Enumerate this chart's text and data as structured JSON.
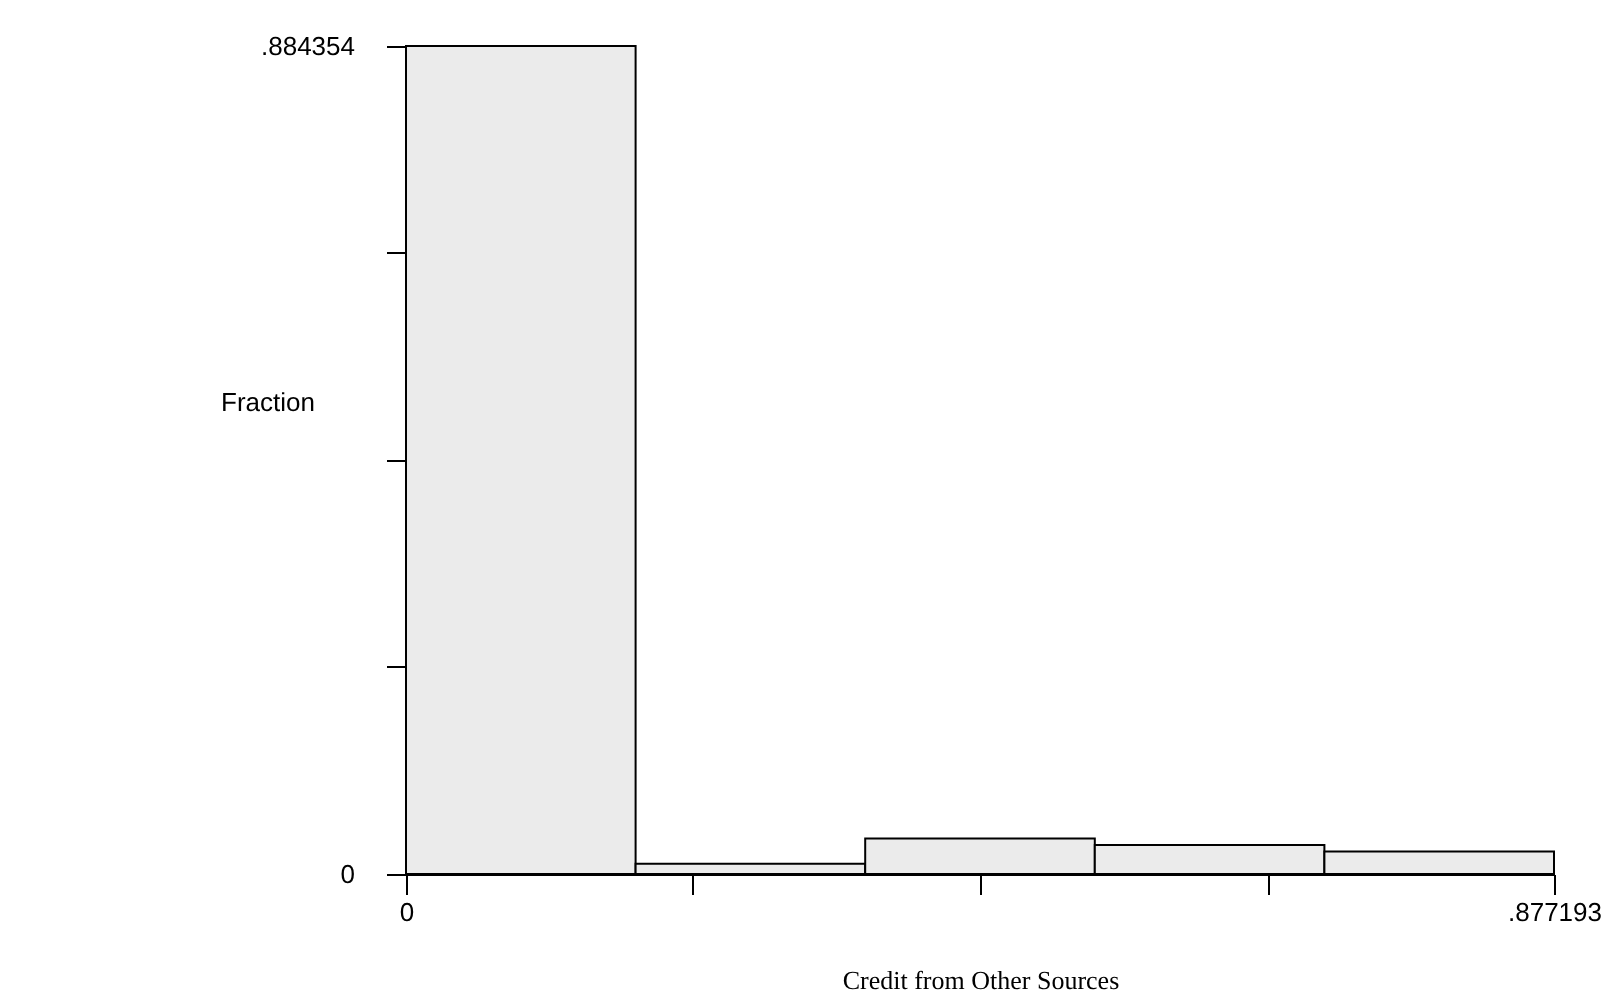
{
  "chart_data": {
    "type": "histogram",
    "xlabel": "Credit from Other Sources",
    "ylabel": "Fraction",
    "bins": [
      0,
      0.1754386,
      0.3508772,
      0.5263158,
      0.7017544,
      0.877193
    ],
    "values": [
      0.884354,
      0.011,
      0.038,
      0.031,
      0.024
    ],
    "color": "#ebebeb",
    "xlim": [
      0,
      0.877193
    ],
    "ylim": [
      0,
      0.884354
    ],
    "xticks": [
      {
        "value": 0,
        "label": "0"
      },
      {
        "value": 0.219298,
        "label": null
      },
      {
        "value": 0.438597,
        "label": null
      },
      {
        "value": 0.657895,
        "label": null
      },
      {
        "value": 0.877193,
        "label": ".877193"
      }
    ],
    "yticks": [
      {
        "value": 0,
        "label": "0"
      },
      {
        "value": 0.221089,
        "label": null
      },
      {
        "value": 0.442177,
        "label": null
      },
      {
        "value": 0.663266,
        "label": null
      },
      {
        "value": 0.884354,
        "label": ".884354"
      }
    ]
  }
}
